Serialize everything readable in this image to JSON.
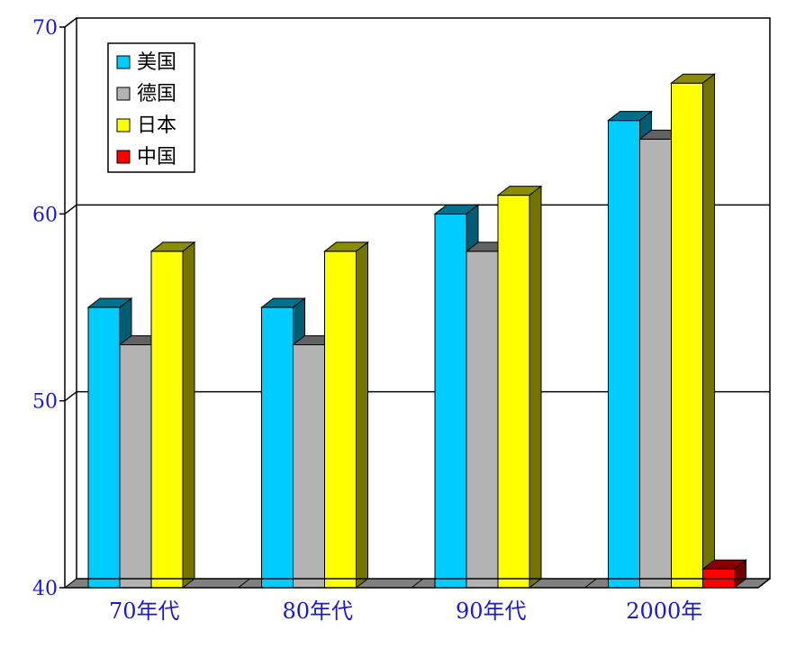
{
  "chart_data": {
    "type": "bar",
    "categories": [
      "70年代",
      "80年代",
      "90年代",
      "2000年"
    ],
    "series": [
      {
        "name": "美国",
        "color": "#00ccff",
        "values": [
          55,
          55,
          60,
          65
        ]
      },
      {
        "name": "德国",
        "color": "#b3b3b3",
        "values": [
          53,
          53,
          58,
          64
        ]
      },
      {
        "name": "日本",
        "color": "#ffff00",
        "values": [
          58,
          58,
          61,
          67
        ]
      },
      {
        "name": "中国",
        "color": "#ff0000",
        "values": [
          null,
          null,
          null,
          41
        ]
      }
    ],
    "ylim": [
      40,
      70
    ],
    "yticks": [
      40,
      50,
      60,
      70
    ],
    "grid": true,
    "legend_position": "top-left",
    "style": "3d-clustered-bar",
    "title": "",
    "xlabel": "",
    "ylabel": ""
  }
}
